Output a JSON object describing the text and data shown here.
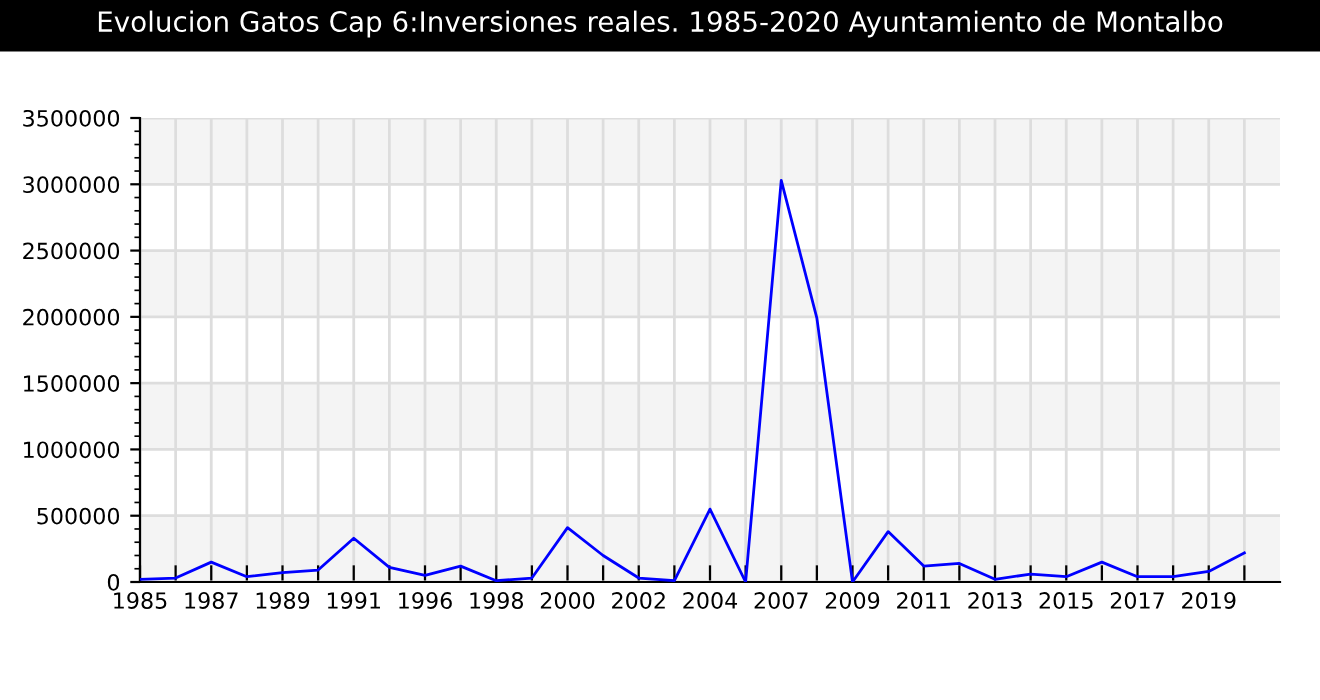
{
  "chart_data": {
    "type": "line",
    "title": "Evolucion Gatos Cap 6:Inversiones reales. 1985-2020 Ayuntamiento de Montalbo",
    "categories": [
      "1985",
      null,
      "1987",
      null,
      "1989",
      null,
      "1991",
      null,
      "1996",
      null,
      "1998",
      null,
      "2000",
      null,
      "2002",
      null,
      "2004",
      null,
      "2007",
      null,
      "2009",
      null,
      "2011",
      null,
      "2013",
      null,
      "2015",
      null,
      "2017",
      null,
      "2019",
      null
    ],
    "series": [
      {
        "color": "#0000ff",
        "values": [
          20000,
          30000,
          150000,
          40000,
          70000,
          90000,
          330000,
          110000,
          50000,
          120000,
          10000,
          30000,
          410000,
          200000,
          30000,
          10000,
          550000,
          0,
          3030000,
          1990000,
          0,
          380000,
          120000,
          140000,
          20000,
          60000,
          40000,
          150000,
          40000,
          40000,
          80000,
          220000
        ]
      }
    ],
    "ylim": [
      0,
      3500000
    ],
    "yticks": [
      0,
      500000,
      1000000,
      1500000,
      2000000,
      2500000,
      3000000,
      3500000
    ],
    "grid": true,
    "legend": false,
    "marker": "none",
    "line_style": "solid"
  }
}
